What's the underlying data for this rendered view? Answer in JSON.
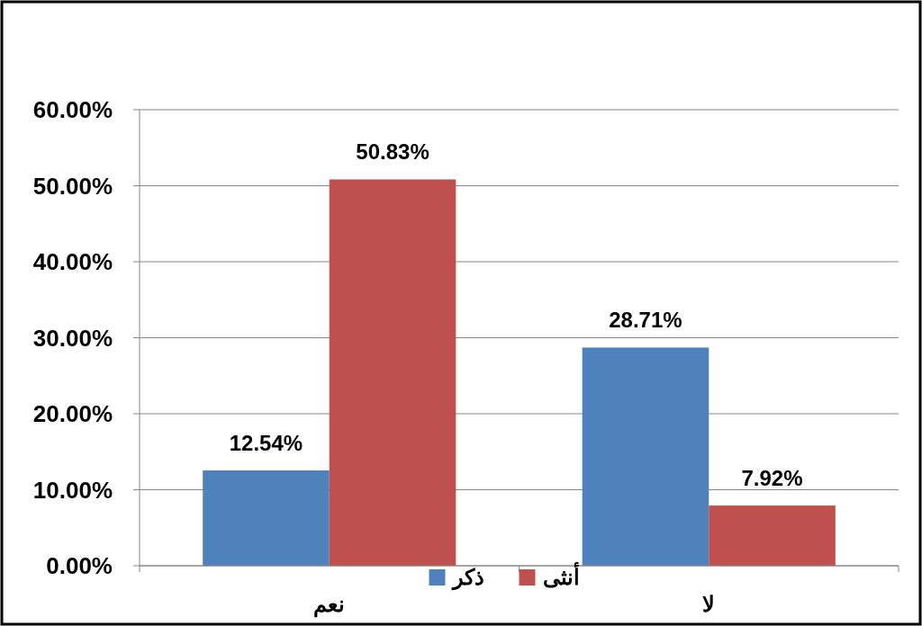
{
  "chart_data": {
    "type": "bar",
    "categories": [
      "نعم",
      "لا"
    ],
    "series": [
      {
        "name": "ذكر",
        "color": "#4f81bd",
        "values": [
          12.54,
          28.71
        ],
        "value_labels": [
          "12.54%",
          "28.71%"
        ]
      },
      {
        "name": "أنثى",
        "color": "#c0504d",
        "values": [
          50.83,
          7.92
        ],
        "value_labels": [
          "50.83%",
          "7.92%"
        ]
      }
    ],
    "ylim": [
      0,
      60
    ],
    "yticks": [
      {
        "value": 0,
        "label": "0.00%"
      },
      {
        "value": 10,
        "label": "10.00%"
      },
      {
        "value": 20,
        "label": "20.00%"
      },
      {
        "value": 30,
        "label": "30.00%"
      },
      {
        "value": 40,
        "label": "40.00%"
      },
      {
        "value": 50,
        "label": "50.00%"
      },
      {
        "value": 60,
        "label": "60.00%"
      }
    ],
    "grid": "y",
    "legend": "bottom"
  }
}
